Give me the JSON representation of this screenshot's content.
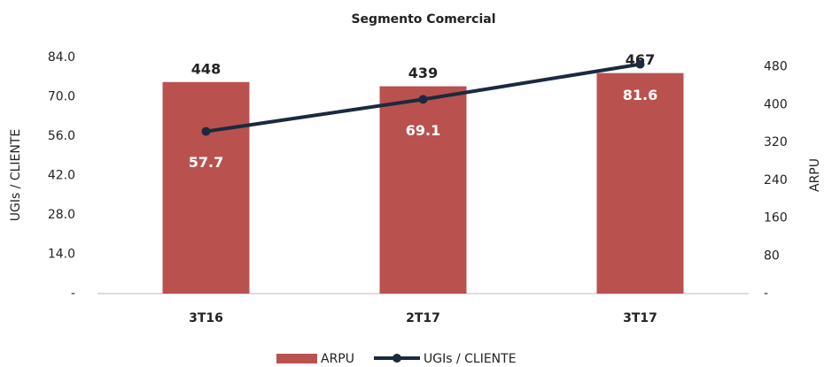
{
  "chart_data": {
    "type": "bar-line",
    "title": "Segmento Comercial",
    "categories": [
      "3T16",
      "2T17",
      "3T17"
    ],
    "series": [
      {
        "name": "ARPU",
        "type": "bar",
        "color": "#b9524f",
        "axis": "y2",
        "values": [
          448,
          439,
          467
        ]
      },
      {
        "name": "UGIs / CLIENTE",
        "type": "line",
        "color": "#1b2a3e",
        "axis": "y",
        "values": [
          57.7,
          69.1,
          81.6
        ]
      }
    ],
    "ylabel": "UGIs / CLIENTE",
    "y2label": "ARPU",
    "ylim": [
      0,
      84
    ],
    "yticks": [
      {
        "value": 0,
        "label": "-"
      },
      {
        "value": 14,
        "label": "14.0"
      },
      {
        "value": 28,
        "label": "28.0"
      },
      {
        "value": 42,
        "label": "42.0"
      },
      {
        "value": 56,
        "label": "56.0"
      },
      {
        "value": 70,
        "label": "70.0"
      },
      {
        "value": 84,
        "label": "84.0"
      }
    ],
    "y2lim": [
      0,
      500
    ],
    "y2ticks": [
      {
        "value": 0,
        "label": "-"
      },
      80,
      160,
      240,
      320,
      400,
      480
    ],
    "legend": "bottom"
  }
}
